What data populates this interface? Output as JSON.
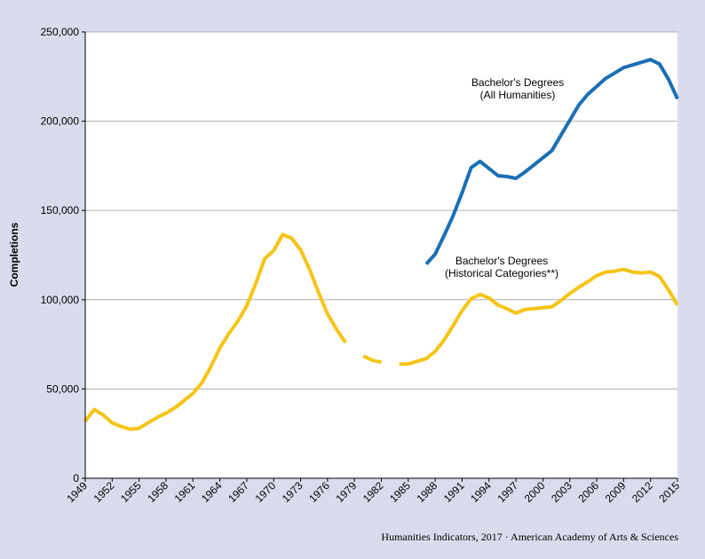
{
  "chart_data": {
    "type": "line",
    "ylabel": "Completions",
    "xlabel": "",
    "ylim": [
      0,
      250000
    ],
    "xlim": [
      1949,
      2015
    ],
    "yticks": [
      0,
      50000,
      100000,
      150000,
      200000,
      250000
    ],
    "ytick_labels": [
      "0",
      "50,000",
      "100,000",
      "150,000",
      "200,000",
      "250,000"
    ],
    "xticks": [
      1949,
      1952,
      1955,
      1958,
      1961,
      1964,
      1967,
      1970,
      1973,
      1976,
      1979,
      1982,
      1985,
      1988,
      1991,
      1994,
      1997,
      2000,
      2003,
      2006,
      2009,
      2012,
      2015
    ],
    "xtick_labels": [
      "1949",
      "1952",
      "1955",
      "1958",
      "1961",
      "1964",
      "1967",
      "1970",
      "1973",
      "1976",
      "1979",
      "1982",
      "1985",
      "1988",
      "1991",
      "1994",
      "1997",
      "2000",
      "2003",
      "2006",
      "2009",
      "2012",
      "2015"
    ],
    "grid": true,
    "series": [
      {
        "name": "Bachelor's Degrees (All Humanities)",
        "label_lines": [
          "Bachelor's Degrees",
          "(All Humanities)"
        ],
        "color": "#1a6fb5",
        "segments": [
          [
            [
              1987,
              120000
            ],
            [
              1988,
              125500
            ],
            [
              1989,
              136000
            ],
            [
              1990,
              147000
            ],
            [
              1991,
              160000
            ],
            [
              1992,
              174000
            ],
            [
              1993,
              177500
            ],
            [
              1994,
              173500
            ],
            [
              1995,
              169500
            ],
            [
              1996,
              169000
            ],
            [
              1997,
              168000
            ],
            [
              1998,
              171500
            ],
            [
              1999,
              175500
            ],
            [
              2000,
              179500
            ],
            [
              2001,
              183500
            ],
            [
              2002,
              192000
            ],
            [
              2003,
              200500
            ],
            [
              2004,
              209000
            ],
            [
              2005,
              215000
            ],
            [
              2006,
              219500
            ],
            [
              2007,
              224000
            ],
            [
              2008,
              227000
            ],
            [
              2009,
              230000
            ],
            [
              2010,
              231500
            ],
            [
              2011,
              233000
            ],
            [
              2012,
              234500
            ],
            [
              2013,
              232000
            ],
            [
              2014,
              223500
            ],
            [
              2015,
              212500
            ]
          ]
        ]
      },
      {
        "name": "Bachelor's Degrees (Historical Categories**)",
        "label_lines": [
          "Bachelor's Degrees",
          "(Historical Categories**)"
        ],
        "color": "#f5c416",
        "segments": [
          [
            [
              1949,
              32000
            ],
            [
              1950,
              38500
            ],
            [
              1951,
              35500
            ],
            [
              1952,
              31000
            ],
            [
              1953,
              29000
            ],
            [
              1954,
              27500
            ],
            [
              1955,
              28000
            ],
            [
              1956,
              31000
            ],
            [
              1957,
              34000
            ],
            [
              1958,
              36500
            ],
            [
              1959,
              39500
            ],
            [
              1960,
              43500
            ],
            [
              1961,
              47500
            ],
            [
              1962,
              53500
            ],
            [
              1963,
              62500
            ],
            [
              1964,
              73000
            ],
            [
              1965,
              81000
            ],
            [
              1966,
              88000
            ],
            [
              1967,
              96500
            ],
            [
              1968,
              109000
            ],
            [
              1969,
              123000
            ],
            [
              1970,
              127500
            ],
            [
              1971,
              136500
            ],
            [
              1972,
              134500
            ],
            [
              1973,
              128000
            ],
            [
              1974,
              117000
            ],
            [
              1975,
              104000
            ],
            [
              1976,
              92000
            ],
            [
              1977,
              83500
            ],
            [
              1978,
              76000
            ]
          ],
          [
            [
              1980,
              68500
            ],
            [
              1981,
              66000
            ],
            [
              1982,
              65000
            ]
          ],
          [
            [
              1984,
              64000
            ],
            [
              1985,
              64000
            ],
            [
              1986,
              65500
            ],
            [
              1987,
              67000
            ],
            [
              1988,
              71000
            ],
            [
              1989,
              77500
            ],
            [
              1990,
              85500
            ],
            [
              1991,
              94000
            ],
            [
              1992,
              100500
            ],
            [
              1993,
              103000
            ],
            [
              1994,
              101000
            ],
            [
              1995,
              97000
            ],
            [
              1996,
              95000
            ],
            [
              1997,
              92500
            ],
            [
              1998,
              94500
            ],
            [
              1999,
              95000
            ],
            [
              2000,
              95500
            ],
            [
              2001,
              96000
            ],
            [
              2002,
              99500
            ],
            [
              2003,
              103500
            ],
            [
              2004,
              107000
            ],
            [
              2005,
              110000
            ],
            [
              2006,
              113500
            ],
            [
              2007,
              115500
            ],
            [
              2008,
              116000
            ],
            [
              2009,
              117000
            ],
            [
              2010,
              115500
            ],
            [
              2011,
              115000
            ],
            [
              2012,
              115500
            ],
            [
              2013,
              113000
            ],
            [
              2014,
              105500
            ],
            [
              2015,
              97000
            ]
          ]
        ]
      }
    ]
  },
  "footer": {
    "source": "Humanities Indicators, 2017 · American Academy of Arts & Sciences"
  }
}
